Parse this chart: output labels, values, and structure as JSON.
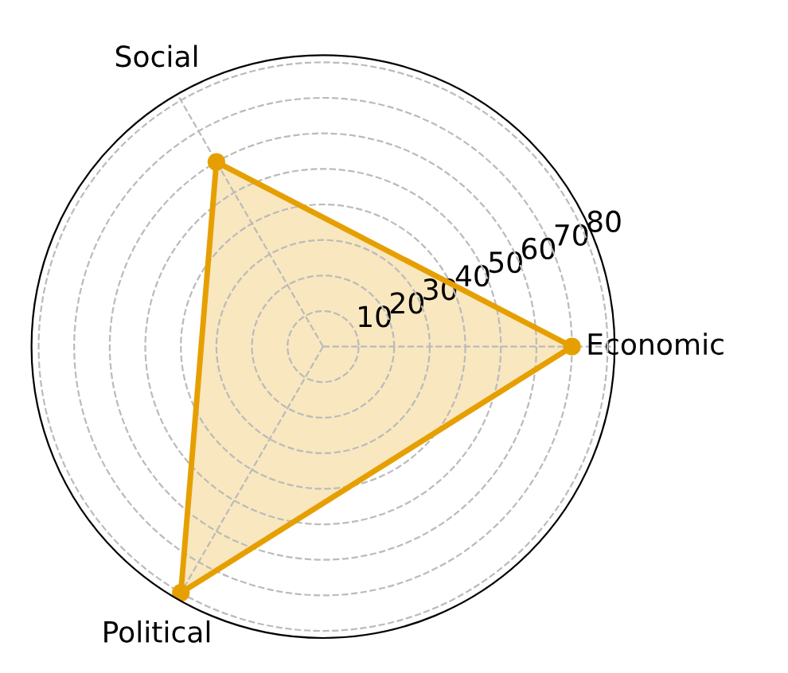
{
  "chart_data": {
    "type": "radar",
    "categories": [
      "Economic",
      "Political",
      "Social"
    ],
    "series": [
      {
        "color": "#e69f00",
        "values": [
          70,
          80,
          60
        ]
      }
    ],
    "ylim": [
      0,
      82
    ],
    "yticks": [
      10,
      20,
      30,
      40,
      50,
      60,
      70,
      80
    ],
    "grid": true,
    "marker": "circle",
    "line_style": "solid"
  }
}
